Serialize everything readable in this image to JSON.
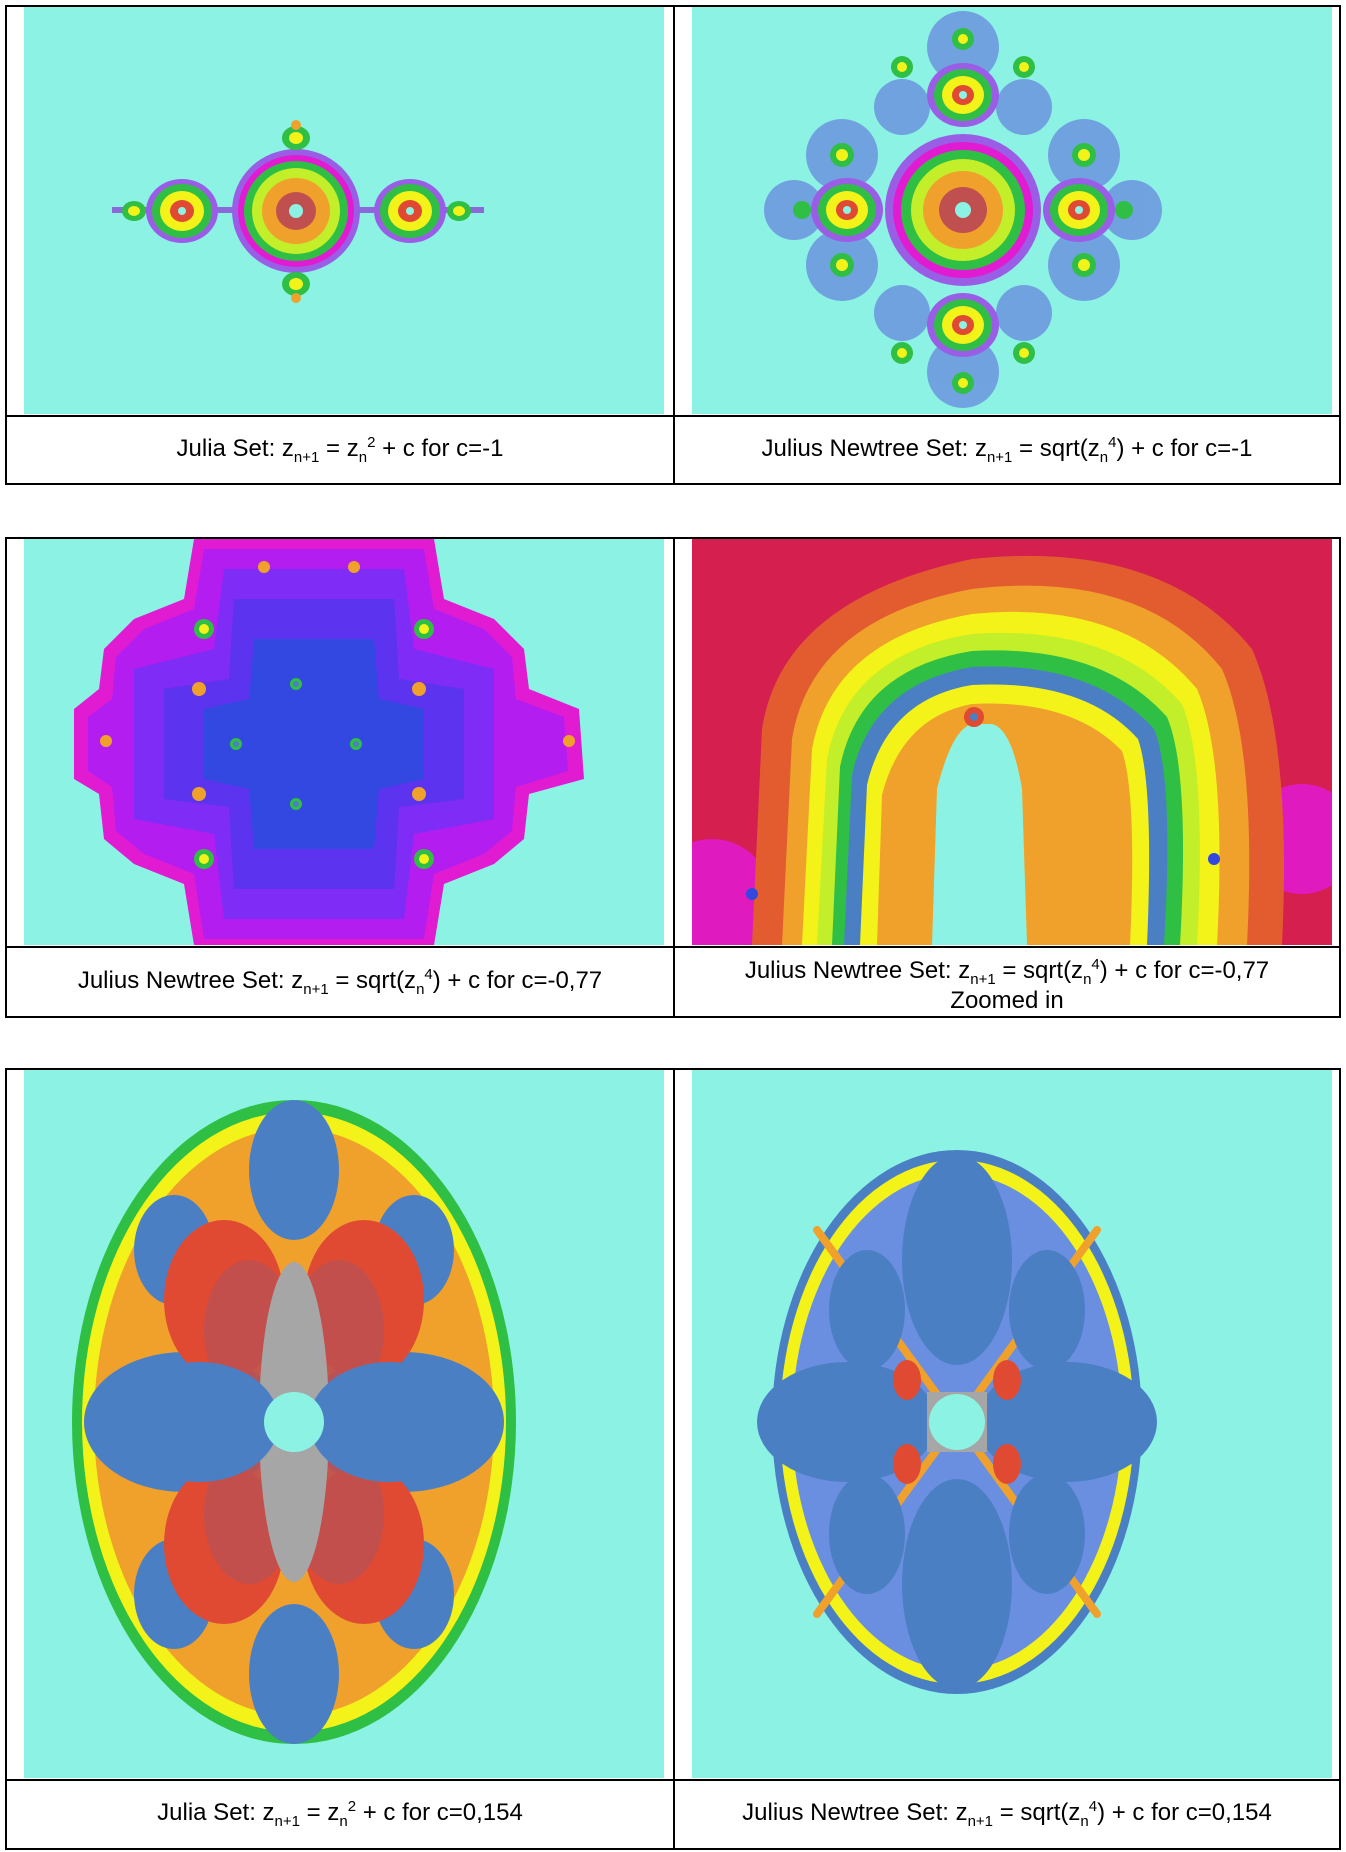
{
  "rows": [
    {
      "left": {
        "prefix": "Julia Set: z",
        "rest": " = z",
        "exp": "2",
        "tail": " + c   for  c=-1",
        "note": ""
      },
      "right": {
        "prefix": "Julius Newtree Set: z",
        "rest": " = sqrt(z",
        "exp": "4",
        "tail": ") + c   for  c=-1",
        "note": ""
      }
    },
    {
      "left": {
        "prefix": "Julius Newtree Set: z",
        "rest": " = sqrt(z",
        "exp": "4",
        "tail": ") + c   for  c=-0,77",
        "note": ""
      },
      "right": {
        "prefix": "Julius Newtree Set: z",
        "rest": " = sqrt(z",
        "exp": "4",
        "tail": ") + c   for  c=-0,77",
        "note": "Zoomed in"
      }
    },
    {
      "left": {
        "prefix": "Julia Set: z",
        "rest": " = z",
        "exp": "2",
        "tail": " + c   for  c=0,154",
        "note": ""
      },
      "right": {
        "prefix": "Julius Newtree Set: z",
        "rest": " = sqrt(z",
        "exp": "4",
        "tail": ") + c   for  c=0,154",
        "note": ""
      }
    }
  ],
  "sub_next": "n+1",
  "sub_n": "n",
  "colors": {
    "background": "#8cf3e4",
    "blue": "#4b7fc4",
    "red": "#e04a33",
    "orange": "#f0a12c",
    "yellow": "#f3f31a",
    "green": "#2fbf44",
    "magenta": "#e11bd2",
    "violet": "#9a1df5",
    "deep_blue": "#3348e0",
    "crimson": "#d41f4f",
    "gray": "#a6a6a6"
  }
}
